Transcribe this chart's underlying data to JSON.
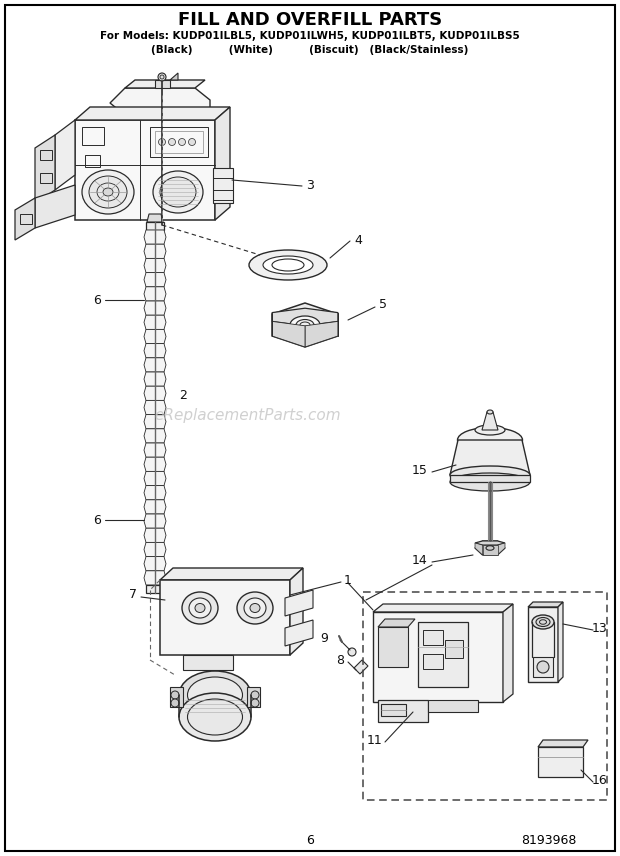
{
  "title": "FILL AND OVERFILL PARTS",
  "subtitle1": "For Models: KUDP01ILBL5, KUDP01ILWH5, KUDP01ILBT5, KUDP01ILBS5",
  "subtitle2": "(Black)          (White)          (Biscuit)   (Black/Stainless)",
  "page_number": "6",
  "doc_number": "8193968",
  "watermark": "eReplacementParts.com",
  "background_color": "#ffffff",
  "border_color": "#000000",
  "line_color": "#2a2a2a",
  "gray_color": "#888888",
  "light_gray": "#bbbbbb"
}
